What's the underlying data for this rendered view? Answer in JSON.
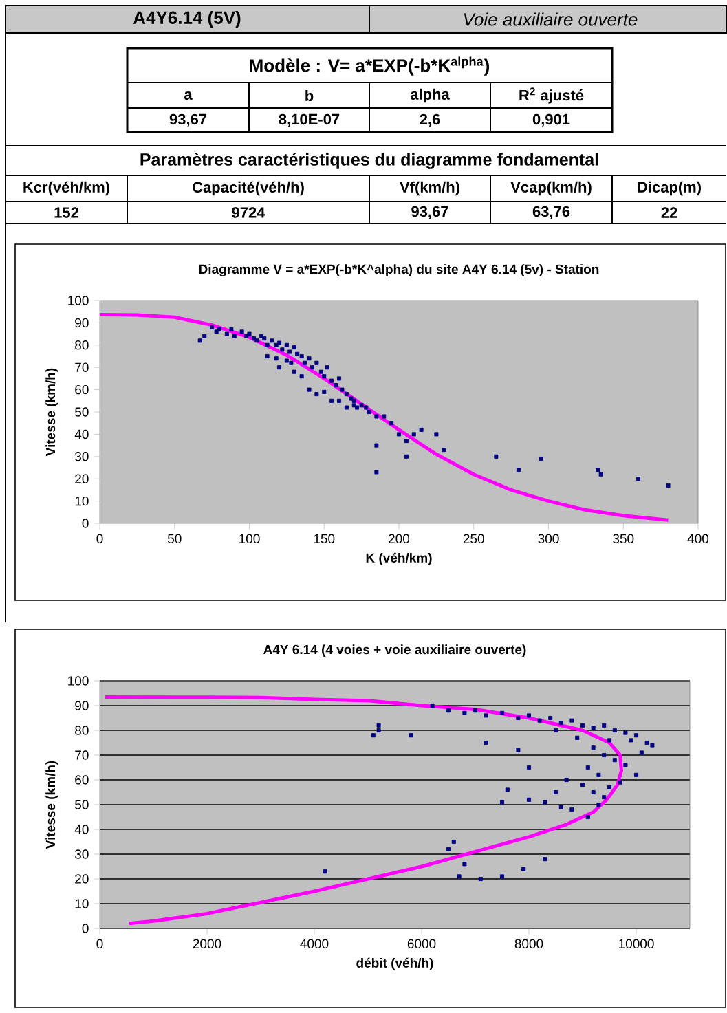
{
  "chart_data": [
    {
      "type": "other",
      "title": "A4Y6.14 (5V)",
      "subtitle": "*Voie auxiliaire ouverte*",
      "annotations": [
        "Modèle : V= a*EXP(-b*K$^{alpha}$)",
        "a",
        "b",
        "alpha",
        "R$^{2}$ ajusté",
        "93,67",
        "8,10E-07",
        "2,6",
        "0,901",
        "Paramètres caractéristiques du diagramme fondamental",
        "Kcr(véh/km)",
        "Capacité(véh/h)",
        "Vf(km/h)",
        "Vcap(km/h)",
        "Dicap(m)",
        "152",
        "9724",
        "93,67",
        "63,76",
        "22"
      ]
    },
    {
      "type": "scatter",
      "title": "Diagramme V = a*EXP(-b*K^alpha) du site A4Y 6.14 (5v) - Station",
      "xlabel": "K (véh/km)",
      "ylabel": "Vitesse (km/h)",
      "xlim": [
        0,
        400
      ],
      "xticks": [
        0,
        50,
        100,
        150,
        200,
        250,
        300,
        350,
        400
      ],
      "ylim": [
        0,
        100
      ],
      "yticks": [
        0,
        10,
        20,
        30,
        40,
        50,
        60,
        70,
        80,
        90,
        100
      ],
      "grid": false,
      "series": [
        {
          "type": "scatter",
          "color": "#000080",
          "marker": "square",
          "x": [
            70,
            67,
            75,
            78,
            80,
            85,
            88,
            90,
            95,
            98,
            100,
            103,
            105,
            108,
            110,
            112,
            115,
            118,
            120,
            122,
            125,
            127,
            130,
            132,
            135,
            137,
            140,
            142,
            145,
            148,
            150,
            152,
            155,
            158,
            160,
            162,
            165,
            168,
            170,
            172,
            175,
            178,
            180,
            120,
            125,
            130,
            135,
            140,
            145,
            150,
            155,
            160,
            165,
            170,
            185,
            190,
            195,
            200,
            205,
            210,
            225,
            215,
            185,
            185,
            205,
            230,
            265,
            280,
            295,
            335,
            333,
            360,
            380,
            112,
            118,
            128
          ],
          "values": [
            84,
            82,
            88,
            86,
            87,
            85,
            87,
            84,
            86,
            84,
            85,
            83,
            82,
            84,
            83,
            80,
            82,
            80,
            81,
            78,
            80,
            77,
            79,
            76,
            75,
            72,
            74,
            70,
            72,
            68,
            66,
            70,
            64,
            62,
            65,
            60,
            58,
            56,
            55,
            52,
            53,
            52,
            50,
            70,
            73,
            68,
            66,
            60,
            58,
            59,
            55,
            55,
            52,
            53,
            48,
            48,
            45,
            40,
            37,
            40,
            40,
            42,
            35,
            23,
            30,
            33,
            30,
            24,
            29,
            22,
            24,
            20,
            17,
            75,
            74,
            72
          ]
        },
        {
          "type": "line",
          "color": "#ff00ff",
          "marker": "none",
          "line_style": "solid",
          "x": [
            0,
            25,
            50,
            75,
            100,
            125,
            150,
            175,
            200,
            225,
            250,
            275,
            300,
            325,
            350,
            380
          ],
          "values": [
            93.7,
            93.5,
            92.5,
            89,
            83.5,
            75.5,
            65,
            53.5,
            42,
            31,
            22,
            15,
            10,
            6,
            3.5,
            1.5
          ]
        }
      ]
    },
    {
      "type": "scatter",
      "title": "A4Y 6.14 (4 voies + voie auxiliaire ouverte)",
      "xlabel": "débit (véh/h)",
      "ylabel": "Vitesse (km/h)",
      "xlim": [
        0,
        11000
      ],
      "xticks": [
        0,
        2000,
        4000,
        6000,
        8000,
        10000
      ],
      "ylim": [
        0,
        100
      ],
      "yticks": [
        0,
        10,
        20,
        30,
        40,
        50,
        60,
        70,
        80,
        90,
        100
      ],
      "grid": "y",
      "series": [
        {
          "type": "scatter",
          "color": "#000080",
          "marker": "square",
          "x": [
            6200,
            6500,
            6800,
            7000,
            7200,
            7500,
            7800,
            8000,
            8200,
            8400,
            8600,
            8800,
            9000,
            9200,
            9400,
            9600,
            9800,
            10000,
            10200,
            10300,
            9900,
            10100,
            9500,
            8500,
            8900,
            9200,
            9400,
            9600,
            9800,
            10000,
            9100,
            9300,
            9000,
            8700,
            9500,
            9700,
            9200,
            9400,
            8500,
            8300,
            8000,
            7600,
            7500,
            8800,
            9100,
            9300,
            7800,
            8000,
            7200,
            5200,
            5100,
            5800,
            5200,
            4200,
            6600,
            6500,
            6700,
            7100,
            7500,
            7900,
            8300,
            6800,
            8600
          ],
          "values": [
            90,
            88,
            87,
            88,
            86,
            87,
            85,
            86,
            84,
            85,
            83,
            84,
            82,
            81,
            82,
            80,
            79,
            78,
            75,
            74,
            76,
            71,
            76,
            80,
            77,
            73,
            70,
            68,
            66,
            62,
            65,
            62,
            58,
            60,
            57,
            59,
            55,
            53,
            55,
            51,
            52,
            56,
            51,
            48,
            45,
            50,
            72,
            65,
            75,
            80,
            78,
            78,
            82,
            23,
            35,
            32,
            21,
            20,
            21,
            24,
            28,
            26,
            49
          ]
        },
        {
          "type": "line",
          "color": "#ff00ff",
          "marker": "none",
          "line_style": "solid",
          "x": [
            100,
            2000,
            3000,
            4000,
            5000,
            6000,
            7000,
            8000,
            9000,
            9500,
            9700,
            9724,
            9650,
            9450,
            9200,
            8700,
            8000,
            7000,
            6000,
            5000,
            4000,
            3000,
            2000,
            1000,
            550
          ],
          "values": [
            93.5,
            93.4,
            93.3,
            92.5,
            92,
            90,
            88.5,
            85,
            80,
            75,
            70,
            63.8,
            58,
            52,
            47,
            42,
            37,
            31,
            25,
            20,
            15,
            10.5,
            6,
            3,
            2
          ]
        }
      ]
    }
  ]
}
